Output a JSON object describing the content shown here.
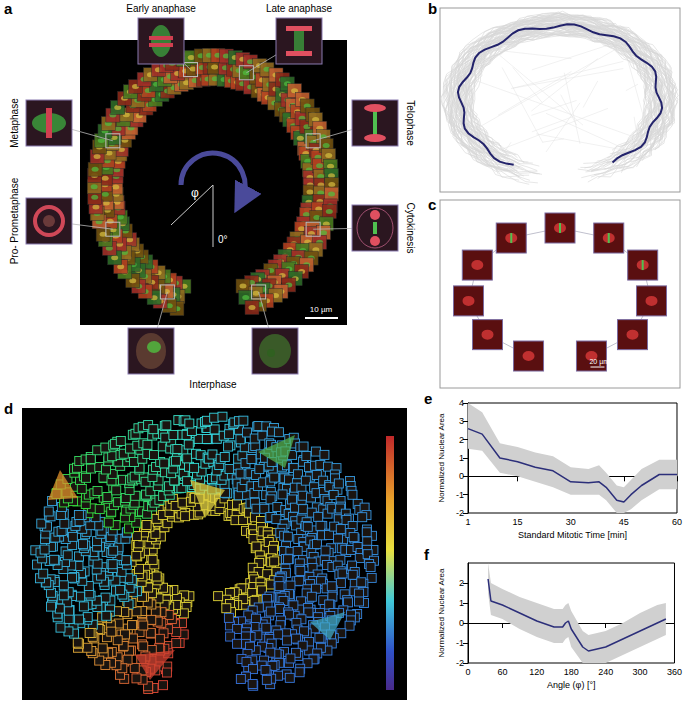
{
  "panel_labels": [
    "a",
    "b",
    "c",
    "d",
    "e",
    "f"
  ],
  "panel_a": {
    "phases": [
      "Early anaphase",
      "Late anaphase",
      "Telophase",
      "Cytokinesis",
      "Interphase",
      "Pro- Prometaphase",
      "Metaphase"
    ],
    "angle_label": "φ",
    "zero_label": "0°",
    "scale_bar": "10 µm"
  },
  "panel_c": {
    "scale_bar": "20 µm"
  },
  "chart_data": [
    {
      "type": "line",
      "x_label": "Standard Mitotic Time [min]",
      "y_label": "Normalized Nuclear Area",
      "x": [
        1,
        5,
        10,
        15,
        20,
        25,
        30,
        35,
        38,
        40,
        43,
        45,
        47,
        50,
        55,
        60
      ],
      "series": [
        {
          "color": "#2c2f7a",
          "values": [
            2.6,
            2.3,
            1.0,
            0.8,
            0.5,
            0.3,
            -0.3,
            -0.35,
            -0.3,
            -0.6,
            -1.3,
            -1.4,
            -1.0,
            -0.5,
            0.1,
            0.1
          ],
          "lower": [
            1.5,
            1.4,
            0.2,
            0.0,
            -0.3,
            -0.6,
            -1.0,
            -1.0,
            -1.0,
            -1.3,
            -2.0,
            -2.0,
            -1.8,
            -1.3,
            -0.7,
            -0.7
          ],
          "upper": [
            4.0,
            3.5,
            1.8,
            1.6,
            1.3,
            1.1,
            0.5,
            0.4,
            0.6,
            0.2,
            -0.5,
            -0.6,
            -0.2,
            0.4,
            0.9,
            0.9
          ]
        }
      ],
      "xlim": [
        1,
        60
      ],
      "xticks": [
        1,
        15,
        30,
        45,
        60
      ],
      "ylim": [
        -2,
        4
      ],
      "yticks": [
        -2,
        -1,
        0,
        1,
        2,
        3,
        4
      ],
      "grid": false
    },
    {
      "type": "line",
      "x_label": "Angle (φ) [°]",
      "y_label": "Normalized Nuclear Area",
      "x": [
        35,
        40,
        60,
        90,
        120,
        150,
        165,
        170,
        175,
        180,
        200,
        210,
        240,
        270,
        300,
        330,
        345
      ],
      "series": [
        {
          "color": "#2c2f7a",
          "values": [
            2.2,
            1.1,
            0.9,
            0.5,
            0.1,
            -0.2,
            -0.2,
            0.0,
            0.1,
            -0.3,
            -1.2,
            -1.4,
            -1.2,
            -0.8,
            -0.4,
            0.0,
            0.2
          ],
          "lower": [
            1.5,
            0.4,
            0.2,
            -0.3,
            -0.7,
            -1.0,
            -1.0,
            -0.8,
            -0.7,
            -1.2,
            -2.0,
            -2.0,
            -2.0,
            -1.6,
            -1.2,
            -0.8,
            -0.6
          ],
          "upper": [
            3.0,
            2.0,
            1.7,
            1.3,
            1.0,
            0.7,
            0.7,
            0.9,
            1.0,
            0.6,
            -0.4,
            -0.6,
            -0.4,
            0.0,
            0.5,
            0.9,
            1.0
          ]
        }
      ],
      "xlim": [
        0,
        360
      ],
      "xticks": [
        0,
        60,
        120,
        180,
        240,
        300,
        360
      ],
      "ylim": [
        -2,
        3
      ],
      "yticks": [
        -2,
        -1,
        0,
        1,
        2
      ],
      "grid": false
    }
  ]
}
